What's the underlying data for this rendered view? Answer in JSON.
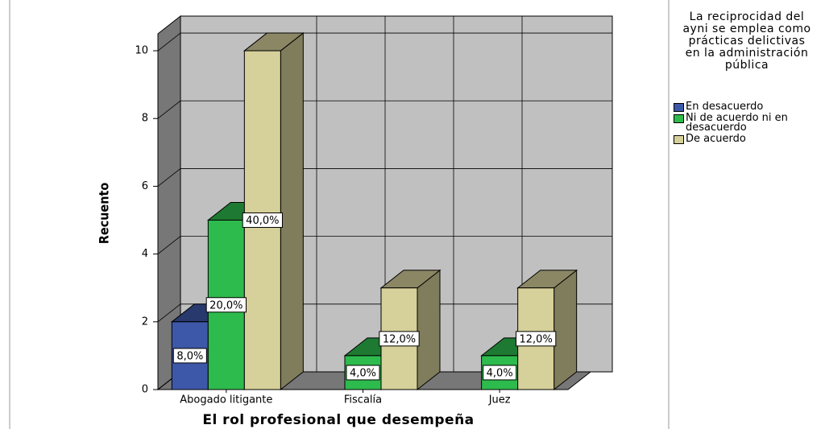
{
  "chart_data": {
    "type": "bar3d",
    "x_label": "El rol profesional que desempeña",
    "y_label": "Recuento",
    "legend_title": "La reciprocidad del ayni se emplea como prácticas delictivas en la administración pública",
    "legend": "right",
    "grid": true,
    "categories": [
      "Abogado litigante",
      "Fiscalía",
      "Juez"
    ],
    "series": [
      {
        "name": "En desacuerdo",
        "color": "#3d58a8",
        "values": [
          2,
          null,
          null
        ],
        "percent_labels": [
          "8,0%",
          null,
          null
        ]
      },
      {
        "name": "Ni de acuerdo ni en desacuerdo",
        "color": "#2ebb4d",
        "values": [
          5,
          1,
          1
        ],
        "percent_labels": [
          "20,0%",
          "4,0%",
          "4,0%"
        ]
      },
      {
        "name": "De acuerdo",
        "color": "#d6d09a",
        "values": [
          10,
          3,
          3
        ],
        "percent_labels": [
          "40,0%",
          "12,0%",
          "12,0%"
        ]
      }
    ],
    "ylim": [
      0,
      10.5
    ],
    "yticks": [
      0,
      2,
      4,
      6,
      8,
      10
    ]
  }
}
